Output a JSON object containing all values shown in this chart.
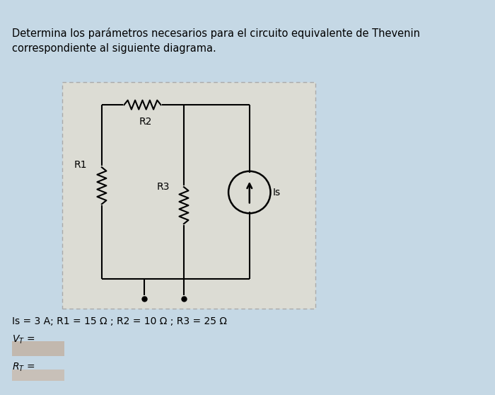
{
  "title_text": "Determina los parámetros necesarios para el circuito equivalente de Thevenin\ncorrespondiente al siguiente diagrama.",
  "bg_color": "#c5d8e5",
  "circuit_box_bg": "#dcdcd4",
  "circuit_box_edge": "#aaaaaa",
  "wire_color": "#000000",
  "text_color": "#000000",
  "formula_text": "Is = 3 A; R1 = 15 Ω ; R2 = 10 Ω ; R3 = 25 Ω",
  "vt_label": "V_T =",
  "rt_label": "R_T =",
  "answer_box_color": "#c2b8ae",
  "answer_box_color2": "#c8c0b8",
  "font_size_title": 10.5,
  "font_size_formula": 10,
  "font_size_labels": 10,
  "font_size_comp": 10
}
